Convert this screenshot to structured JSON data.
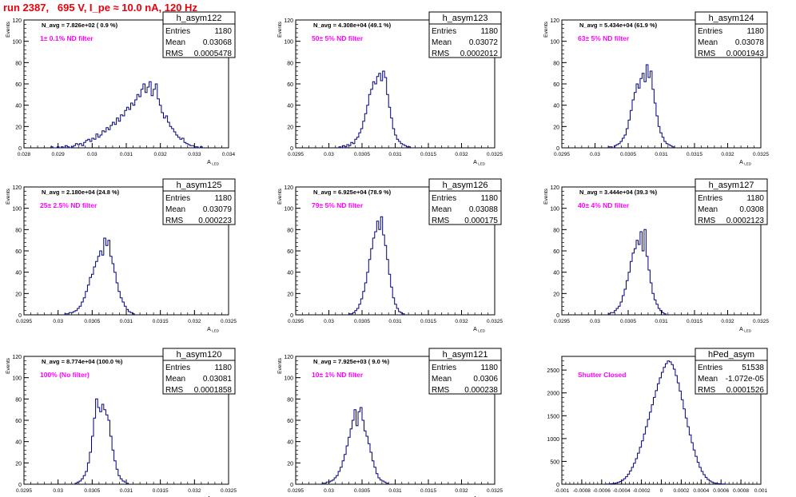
{
  "title": "run 2387,   695 V, I_pe ≈ 10.0 nA, 120 Hz",
  "colors": {
    "title": "#e8000b",
    "histogram": "#00007f",
    "filter_label": "#ff00ff",
    "frame": "#000000"
  },
  "stats_labels": {
    "entries": "Entries",
    "mean": "Mean",
    "rms": "RMS"
  },
  "chart_data": [
    {
      "type": "histogram",
      "name": "h_asym122",
      "xlabel": "A",
      "xlabel_sub": "LED",
      "ylabel": "Events",
      "xlim": [
        0.028,
        0.034
      ],
      "ylim": [
        0,
        120
      ],
      "x_ticks": [
        "0.028",
        "0.029",
        "0.03",
        "0.031",
        "0.032",
        "0.033",
        "0.034"
      ],
      "x_tick_values": [
        0.028,
        0.029,
        0.03,
        0.031,
        0.032,
        0.033,
        0.034
      ],
      "y_ticks": [
        "0",
        "20",
        "40",
        "60",
        "80",
        "100",
        "120"
      ],
      "annotation": "N_avg = 7.826e+02 ( 0.9 %)",
      "filter_label": "1± 0.1% ND filter",
      "entries": "1180",
      "mean": "0.03068",
      "rms": "0.0005478",
      "x_min": 0.02879,
      "bin_width": 6e-05,
      "counts": [
        1,
        0,
        0,
        1,
        0,
        1,
        0,
        2,
        1,
        0,
        1,
        2,
        4,
        3,
        4,
        2,
        5,
        7,
        8,
        6,
        9,
        8,
        13,
        10,
        12,
        16,
        15,
        19,
        17,
        21,
        24,
        22,
        28,
        25,
        31,
        30,
        35,
        38,
        36,
        42,
        40,
        45,
        50,
        48,
        55,
        60,
        52,
        57,
        62,
        49,
        55,
        60,
        46,
        40,
        33,
        28,
        30,
        24,
        20,
        18,
        15,
        12,
        10,
        8,
        9,
        5,
        4,
        3,
        2,
        2,
        1,
        1,
        0,
        1
      ]
    },
    {
      "type": "histogram",
      "name": "h_asym123",
      "xlabel": "A",
      "xlabel_sub": "LED",
      "ylabel": "Events",
      "xlim": [
        0.0295,
        0.0325
      ],
      "ylim": [
        0,
        120
      ],
      "x_ticks": [
        "0.0295",
        "0.03",
        "0.0305",
        "0.031",
        "0.0315",
        "0.032",
        "0.0325"
      ],
      "x_tick_values": [
        0.0295,
        0.03,
        0.0305,
        0.031,
        0.0315,
        0.032,
        0.0325
      ],
      "y_ticks": [
        "0",
        "20",
        "40",
        "60",
        "80",
        "100",
        "120"
      ],
      "annotation": "N_avg = 4.308e+04 (49.1 %)",
      "filter_label": "50± 5% ND filter",
      "entries": "1180",
      "mean": "0.03072",
      "rms": "0.0002012",
      "x_min": 0.03015,
      "bin_width": 3e-05,
      "counts": [
        1,
        0,
        2,
        1,
        3,
        2,
        5,
        4,
        8,
        10,
        14,
        18,
        25,
        32,
        40,
        50,
        55,
        62,
        60,
        67,
        70,
        63,
        72,
        66,
        50,
        38,
        28,
        18,
        12,
        8,
        6,
        4,
        3,
        2,
        1,
        1
      ]
    },
    {
      "type": "histogram",
      "name": "h_asym124",
      "xlabel": "A",
      "xlabel_sub": "LED",
      "ylabel": "Events",
      "xlim": [
        0.0295,
        0.0325
      ],
      "ylim": [
        0,
        120
      ],
      "x_ticks": [
        "0.0295",
        "0.03",
        "0.0305",
        "0.031",
        "0.0315",
        "0.032",
        "0.0325"
      ],
      "x_tick_values": [
        0.0295,
        0.03,
        0.0305,
        0.031,
        0.0315,
        0.032,
        0.0325
      ],
      "y_ticks": [
        "0",
        "20",
        "40",
        "60",
        "80",
        "100",
        "120"
      ],
      "annotation": "N_avg = 5.434e+04 (61.9 %)",
      "filter_label": "63± 5% ND filter",
      "entries": "1180",
      "mean": "0.03078",
      "rms": "0.0001943",
      "x_min": 0.0302,
      "bin_width": 3e-05,
      "counts": [
        1,
        1,
        0,
        2,
        3,
        4,
        6,
        9,
        12,
        18,
        26,
        35,
        45,
        52,
        60,
        56,
        65,
        70,
        62,
        78,
        66,
        72,
        55,
        42,
        30,
        20,
        14,
        10,
        6,
        4,
        3,
        2,
        1
      ]
    },
    {
      "type": "histogram",
      "name": "h_asym125",
      "xlabel": "A",
      "xlabel_sub": "LED",
      "ylabel": "Events",
      "xlim": [
        0.0295,
        0.0325
      ],
      "ylim": [
        0,
        120
      ],
      "x_ticks": [
        "0.0295",
        "0.03",
        "0.0305",
        "0.031",
        "0.0315",
        "0.032",
        "0.0325"
      ],
      "x_tick_values": [
        0.0295,
        0.03,
        0.0305,
        0.031,
        0.0315,
        0.032,
        0.0325
      ],
      "y_ticks": [
        "0",
        "20",
        "40",
        "60",
        "80",
        "100",
        "120"
      ],
      "annotation": "N_avg = 2.180e+04 (24.8 %)",
      "filter_label": "25± 2.5% ND filter",
      "entries": "1180",
      "mean": "0.03079",
      "rms": "0.000223",
      "x_min": 0.0301,
      "bin_width": 3e-05,
      "counts": [
        1,
        1,
        2,
        2,
        3,
        4,
        6,
        8,
        12,
        16,
        22,
        28,
        35,
        38,
        45,
        50,
        55,
        60,
        56,
        72,
        65,
        70,
        55,
        48,
        40,
        30,
        22,
        16,
        12,
        8,
        5,
        3,
        2,
        1
      ]
    },
    {
      "type": "histogram",
      "name": "h_asym126",
      "xlabel": "A",
      "xlabel_sub": "LED",
      "ylabel": "Events",
      "xlim": [
        0.0295,
        0.0325
      ],
      "ylim": [
        0,
        120
      ],
      "x_ticks": [
        "0.0295",
        "0.03",
        "0.0305",
        "0.031",
        "0.0315",
        "0.032",
        "0.0325"
      ],
      "x_tick_values": [
        0.0295,
        0.03,
        0.0305,
        0.031,
        0.0315,
        0.032,
        0.0325
      ],
      "y_ticks": [
        "0",
        "20",
        "40",
        "60",
        "80",
        "100",
        "120"
      ],
      "annotation": "N_avg = 6.925e+04 (78.9 %)",
      "filter_label": "79± 5% ND filter",
      "entries": "1180",
      "mean": "0.03088",
      "rms": "0.000175",
      "x_min": 0.0303,
      "bin_width": 3e-05,
      "counts": [
        1,
        1,
        2,
        4,
        6,
        10,
        15,
        22,
        30,
        40,
        52,
        62,
        72,
        78,
        88,
        80,
        92,
        75,
        65,
        52,
        38,
        26,
        16,
        10,
        6,
        3,
        2,
        1
      ]
    },
    {
      "type": "histogram",
      "name": "h_asym127",
      "xlabel": "A",
      "xlabel_sub": "LED",
      "ylabel": "Events",
      "xlim": [
        0.0295,
        0.0325
      ],
      "ylim": [
        0,
        120
      ],
      "x_ticks": [
        "0.0295",
        "0.03",
        "0.0305",
        "0.031",
        "0.0315",
        "0.032",
        "0.0325"
      ],
      "x_tick_values": [
        0.0295,
        0.03,
        0.0305,
        0.031,
        0.0315,
        0.032,
        0.0325
      ],
      "y_ticks": [
        "0",
        "20",
        "40",
        "60",
        "80",
        "100",
        "120"
      ],
      "annotation": "N_avg = 3.444e+04 (39.3 %)",
      "filter_label": "40± 4% ND filter",
      "entries": "1180",
      "mean": "0.0308",
      "rms": "0.0002123",
      "x_min": 0.0302,
      "bin_width": 3e-05,
      "counts": [
        1,
        2,
        2,
        4,
        6,
        8,
        12,
        18,
        24,
        32,
        40,
        50,
        58,
        62,
        70,
        66,
        78,
        60,
        80,
        55,
        42,
        30,
        20,
        14,
        10,
        6,
        4,
        2,
        1
      ]
    },
    {
      "type": "histogram",
      "name": "h_asym120",
      "xlabel": "A",
      "xlabel_sub": "LED",
      "ylabel": "Events",
      "xlim": [
        0.0295,
        0.0325
      ],
      "ylim": [
        0,
        120
      ],
      "x_ticks": [
        "0.0295",
        "0.03",
        "0.0305",
        "0.031",
        "0.0315",
        "0.032",
        "0.0325"
      ],
      "x_tick_values": [
        0.0295,
        0.03,
        0.0305,
        0.031,
        0.0315,
        0.032,
        0.0325
      ],
      "y_ticks": [
        "0",
        "20",
        "40",
        "60",
        "80",
        "100",
        "120"
      ],
      "annotation": "N_avg = 8.774e+04 (100.0 %)",
      "filter_label": "100% (No filter)",
      "entries": "1180",
      "mean": "0.03081",
      "rms": "0.0001858",
      "x_min": 0.03025,
      "bin_width": 3e-05,
      "counts": [
        1,
        2,
        3,
        5,
        8,
        12,
        20,
        30,
        45,
        62,
        80,
        72,
        68,
        75,
        70,
        65,
        60,
        45,
        32,
        22,
        14,
        8,
        5,
        3,
        2,
        1
      ]
    },
    {
      "type": "histogram",
      "name": "h_asym121",
      "xlabel": "A",
      "xlabel_sub": "LED",
      "ylabel": "Events",
      "xlim": [
        0.0295,
        0.0325
      ],
      "ylim": [
        0,
        120
      ],
      "x_ticks": [
        "0.0295",
        "0.03",
        "0.0305",
        "0.031",
        "0.0315",
        "0.032",
        "0.0325"
      ],
      "x_tick_values": [
        0.0295,
        0.03,
        0.0305,
        0.031,
        0.0315,
        0.032,
        0.0325
      ],
      "y_ticks": [
        "0",
        "20",
        "40",
        "60",
        "80",
        "100",
        "120"
      ],
      "annotation": "N_avg = 7.925e+03 ( 9.0 %)",
      "filter_label": "10± 1% ND filter",
      "entries": "1180",
      "mean": "0.0306",
      "rms": "0.000238",
      "x_min": 0.0299,
      "bin_width": 3e-05,
      "counts": [
        1,
        1,
        2,
        2,
        3,
        4,
        6,
        8,
        12,
        16,
        22,
        28,
        36,
        44,
        52,
        60,
        70,
        55,
        68,
        72,
        60,
        50,
        45,
        38,
        30,
        22,
        16,
        10,
        6,
        4,
        3,
        2,
        1
      ]
    },
    {
      "type": "histogram",
      "name": "hPed_asym",
      "xlabel": "",
      "xlabel_sub": "",
      "ylabel": "",
      "xlim": [
        -0.001,
        0.001
      ],
      "ylim": [
        0,
        2800
      ],
      "x_ticks": [
        "-0.001",
        "-0.0008",
        "-0.0006",
        "-0.0004",
        "-0.0002",
        "0",
        "0.0002",
        "0.0004",
        "0.0006",
        "0.0008",
        "0.001"
      ],
      "x_tick_values": [
        -0.001,
        -0.0008,
        -0.0006,
        -0.0004,
        -0.0002,
        0,
        0.0002,
        0.0004,
        0.0006,
        0.0008,
        0.001
      ],
      "y_ticks": [
        "0",
        "500",
        "1000",
        "1500",
        "2000",
        "2500"
      ],
      "annotation": "",
      "filter_label": "Shutter Closed",
      "entries": "51538",
      "mean": "-1.072e-05",
      "rms": "0.0001526",
      "x_min": -0.00056,
      "bin_width": 2e-05,
      "counts": [
        3,
        5,
        8,
        12,
        18,
        28,
        40,
        60,
        85,
        120,
        165,
        220,
        290,
        370,
        460,
        560,
        680,
        810,
        950,
        1100,
        1260,
        1420,
        1580,
        1740,
        1900,
        2050,
        2200,
        2330,
        2450,
        2560,
        2640,
        2700,
        2680,
        2620,
        2520,
        2380,
        2220,
        2040,
        1850,
        1650,
        1450,
        1260,
        1080,
        910,
        750,
        610,
        480,
        370,
        280,
        210,
        150,
        105,
        72,
        48,
        32,
        20,
        12,
        8,
        5,
        3
      ]
    }
  ]
}
